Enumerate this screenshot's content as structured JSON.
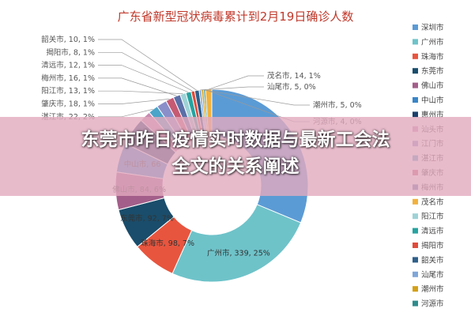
{
  "overlay": {
    "line1": "东莞市昨日疫情实时数据与最新工会法",
    "line2": "全文的关系阐述"
  },
  "chart_data": {
    "type": "pie",
    "title_part1": "广东省新型冠状病毒",
    "title_part2": "累计到2月19日确诊人数",
    "slices": [
      {
        "name": "深圳市",
        "value": 417,
        "color": "#5b9bd5"
      },
      {
        "name": "广州市",
        "value": 339,
        "pct": "25%",
        "color": "#6ec3c9"
      },
      {
        "name": "珠海市",
        "value": 98,
        "pct": "7%",
        "color": "#e8553e"
      },
      {
        "name": "东莞市",
        "value": 92,
        "pct": "7%",
        "color": "#1a4d6b"
      },
      {
        "name": "佛山市",
        "value": 84,
        "pct": "6%",
        "color": "#a35f8a"
      },
      {
        "name": "中山市",
        "value": 66,
        "color": "#3a85c8"
      },
      {
        "name": "惠州市",
        "value": 62,
        "color": "#1b3f6b"
      },
      {
        "name": "汕头市",
        "value": 25,
        "color": "#c98bb0"
      },
      {
        "name": "湛江市",
        "value": 22,
        "pct": "2%",
        "color": "#4ba4c9"
      },
      {
        "name": "江门市",
        "value": 23,
        "color": "#8a8fc9"
      },
      {
        "name": "肇庆市",
        "value": 18,
        "pct": "1%",
        "color": "#c65a73"
      },
      {
        "name": "梅州市",
        "value": 16,
        "pct": "1%",
        "color": "#5b6fa8"
      },
      {
        "name": "阳江市",
        "value": 13,
        "pct": "1%",
        "color": "#9ed2d6"
      },
      {
        "name": "清远市",
        "value": 12,
        "pct": "1%",
        "color": "#27a3a0"
      },
      {
        "name": "揭阳市",
        "value": 8,
        "pct": "1%",
        "color": "#e04b3a"
      },
      {
        "name": "韶关市",
        "value": 10,
        "pct": "1%",
        "color": "#2f5f8a"
      },
      {
        "name": "汕尾市",
        "value": 5,
        "pct": "0%",
        "color": "#7ea6d8"
      },
      {
        "name": "潮州市",
        "value": 5,
        "pct": "0%",
        "color": "#d4a017"
      },
      {
        "name": "河源市",
        "value": 4,
        "pct": "0%",
        "color": "#2e8b8b"
      },
      {
        "name": "茂名市",
        "value": 14,
        "pct": "1%",
        "color": "#f2b13c"
      }
    ],
    "shown_labels": [
      "湛江市",
      "肇庆市",
      "梅州市",
      "阳江市",
      "清远市",
      "揭阳市",
      "韶关市",
      "茂名市",
      "汕尾市",
      "潮州市",
      "河源市",
      "中山市",
      "佛山市",
      "东莞市",
      "珠海市",
      "广州市"
    ],
    "legend_order": [
      "深圳市",
      "广州市",
      "珠海市",
      "东莞市",
      "佛山市",
      "中山市",
      "惠州市",
      "汕头市",
      "江门市",
      "湛江市",
      "肇庆市",
      "梅州市",
      "茂名市",
      "阳江市",
      "清远市",
      "揭阳市",
      "韶关市",
      "汕尾市",
      "潮州市",
      "河源市"
    ],
    "legend_placement": "right"
  }
}
